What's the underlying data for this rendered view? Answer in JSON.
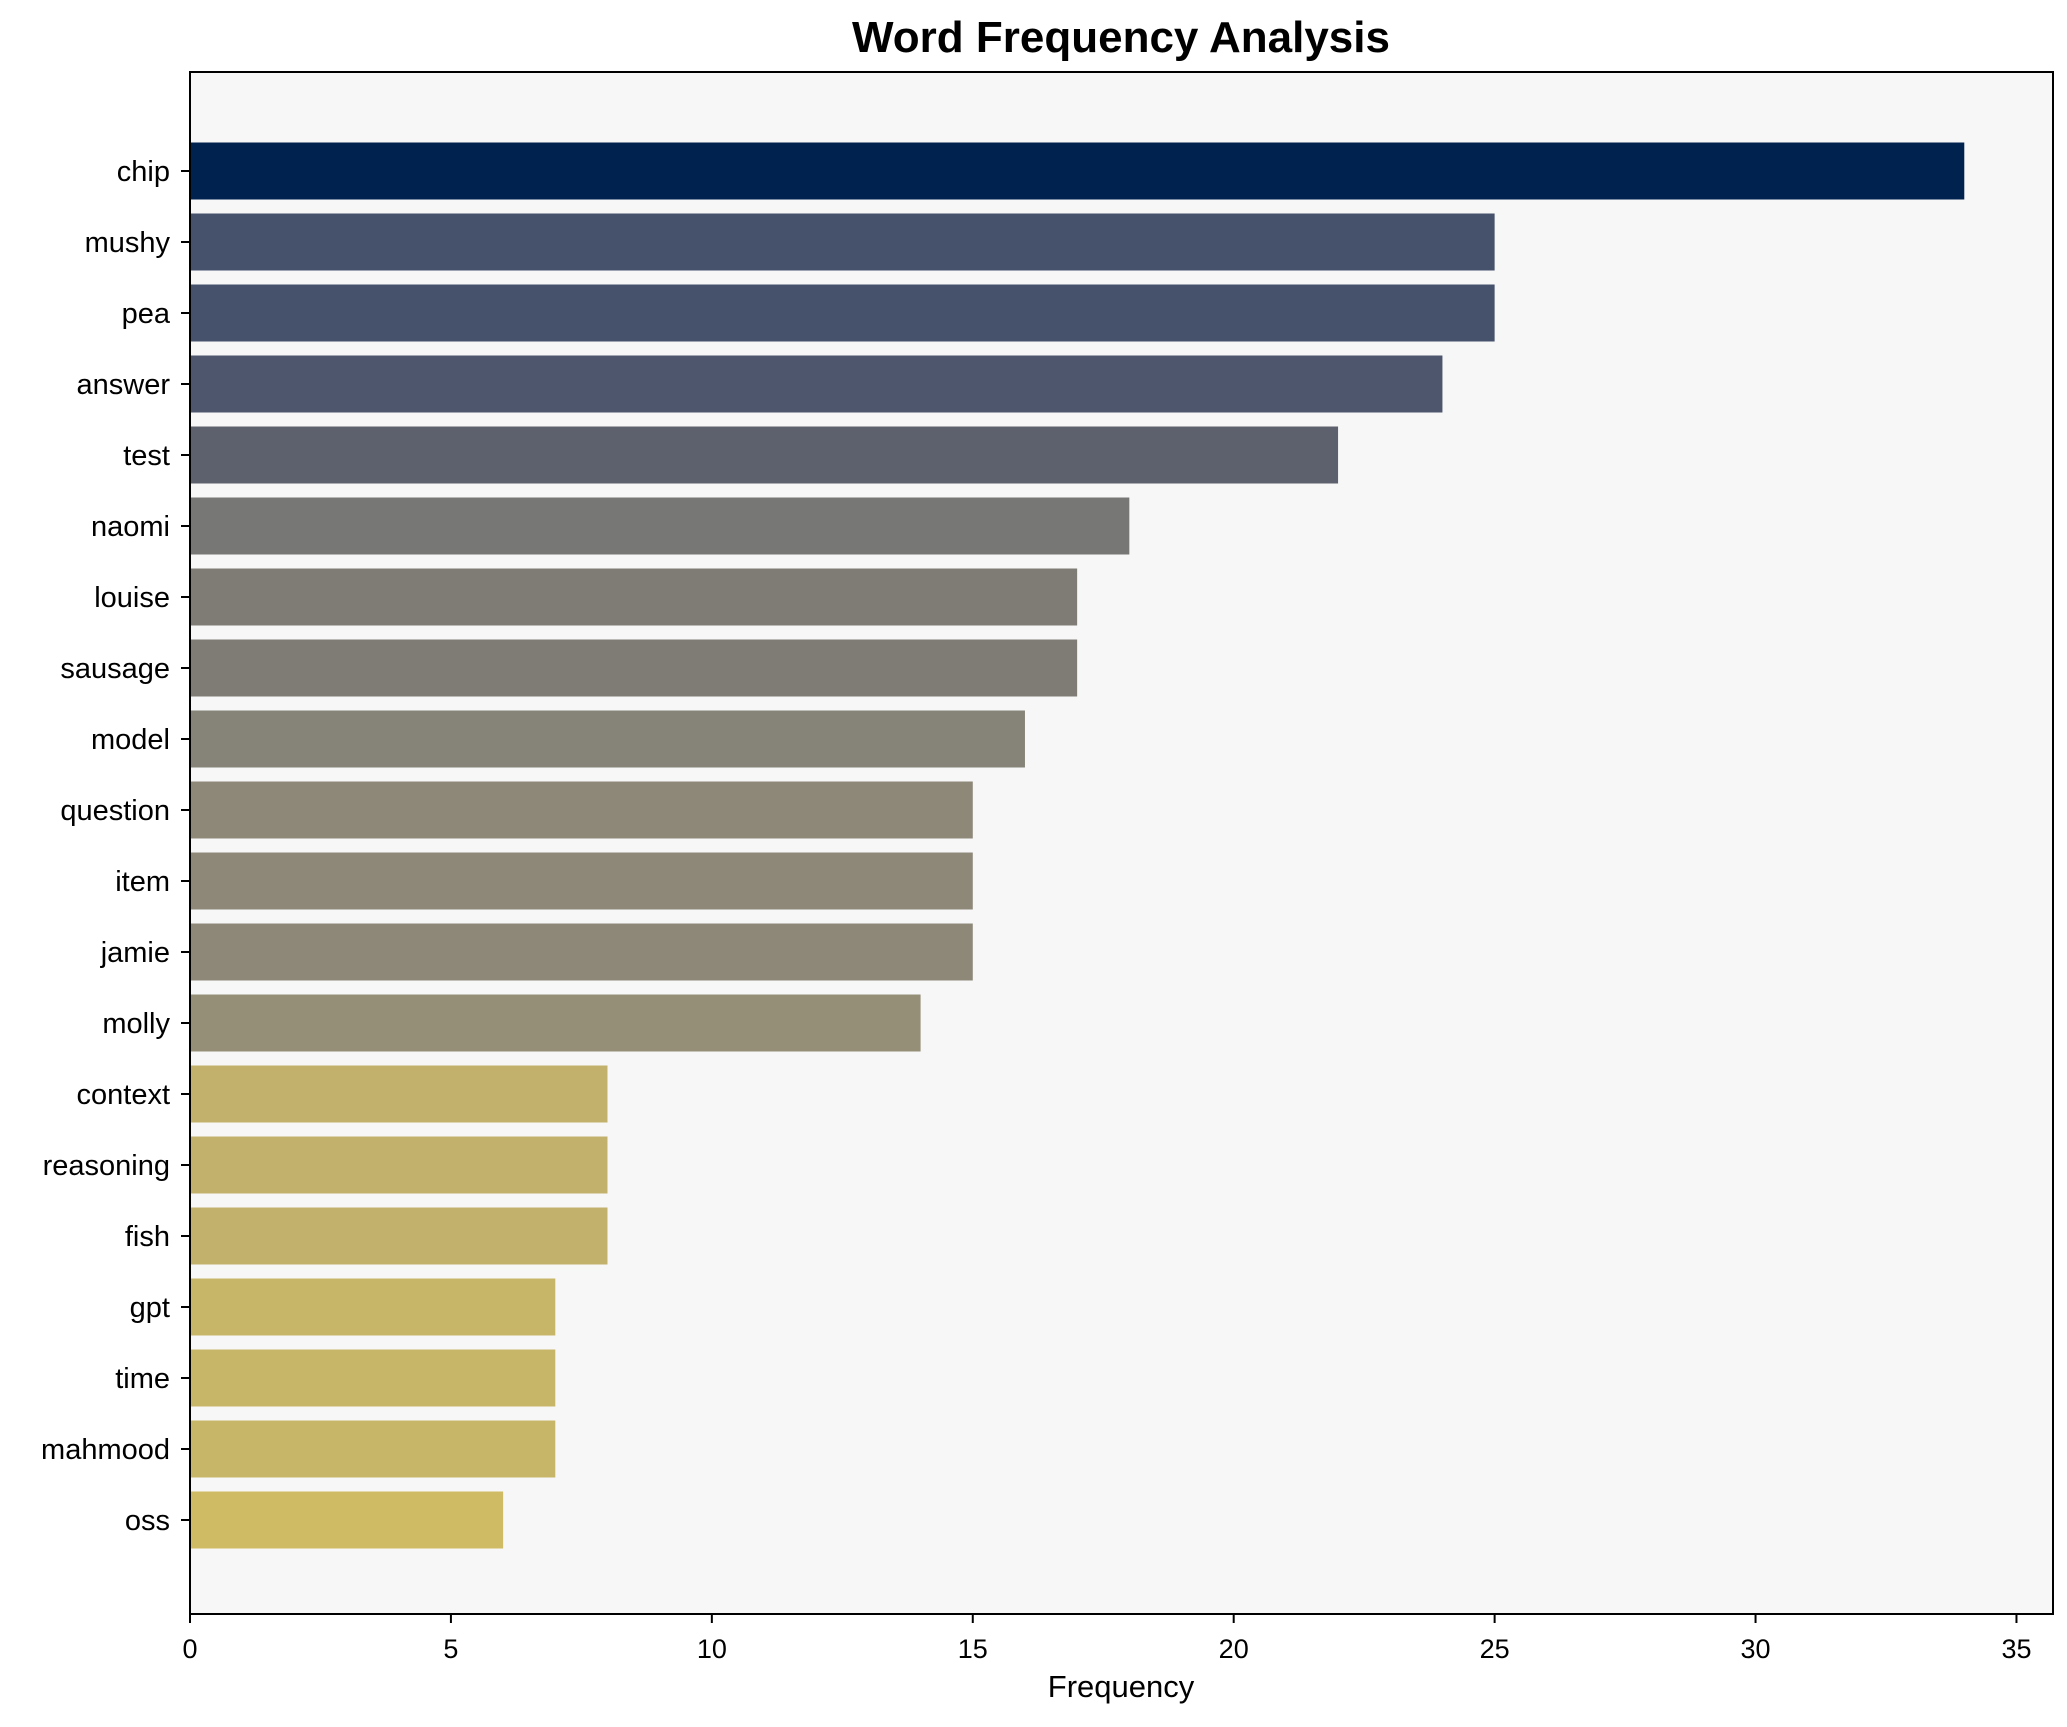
{
  "chart_data": {
    "type": "bar",
    "orientation": "horizontal",
    "title": "Word Frequency Analysis",
    "xlabel": "Frequency",
    "ylabel": "",
    "xlim": [
      0,
      35.7
    ],
    "xticks": [
      0,
      5,
      10,
      15,
      20,
      25,
      30,
      35
    ],
    "grid": false,
    "legend": "none",
    "background_color": "#f7f7f7",
    "categories": [
      "chip",
      "mushy",
      "pea",
      "answer",
      "test",
      "naomi",
      "louise",
      "sausage",
      "model",
      "question",
      "item",
      "jamie",
      "molly",
      "context",
      "reasoning",
      "fish",
      "gpt",
      "time",
      "mahmood",
      "oss"
    ],
    "values": [
      34,
      25,
      25,
      24,
      22,
      18,
      17,
      17,
      16,
      15,
      15,
      15,
      14,
      8,
      8,
      8,
      7,
      7,
      7,
      6
    ],
    "colors": [
      "#00224e",
      "#46516b",
      "#46516b",
      "#4d566c",
      "#5d616e",
      "#777776",
      "#7f7c76",
      "#7f7c76",
      "#868478",
      "#8d8878",
      "#8d8878",
      "#8d8878",
      "#958f78",
      "#c2b06d",
      "#c2b06d",
      "#c2b06d",
      "#c8b668",
      "#c8b668",
      "#c8b668",
      "#cfbb63"
    ]
  }
}
